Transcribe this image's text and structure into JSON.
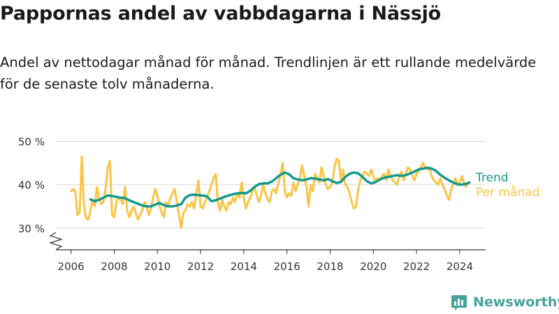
{
  "title": "Pappornas andel av vabbdagarna i Nässjö",
  "subtitle": "Andel av nettodagar månad för månad. Trendlinjen är ett rullande medelvärde för de senaste tolv månaderna.",
  "brand": {
    "name": "Newsworthy"
  },
  "colors": {
    "trend": "#14998c",
    "monthly": "#fcc444",
    "grid": "#d9d9d9",
    "axis": "#333333"
  },
  "chart_data": {
    "type": "line",
    "ylim": [
      25,
      52
    ],
    "y_ticks": [
      {
        "value": 30,
        "label": "30 %"
      },
      {
        "value": 40,
        "label": "40 %"
      },
      {
        "value": 50,
        "label": "50 %"
      }
    ],
    "xlim": [
      2005.3,
      2025.2
    ],
    "x_ticks": [
      {
        "value": 2006,
        "label": "2006"
      },
      {
        "value": 2008,
        "label": "2008"
      },
      {
        "value": 2010,
        "label": "2010"
      },
      {
        "value": 2012,
        "label": "2012"
      },
      {
        "value": 2014,
        "label": "2014"
      },
      {
        "value": 2016,
        "label": "2016"
      },
      {
        "value": 2018,
        "label": "2018"
      },
      {
        "value": 2020,
        "label": "2020"
      },
      {
        "value": 2022,
        "label": "2022"
      },
      {
        "value": 2024,
        "label": "2024"
      }
    ],
    "grid": true,
    "axis_break": true,
    "series": [
      {
        "name": "Per månad",
        "color": "#fcc444",
        "points": [
          [
            2006.0,
            38.5
          ],
          [
            2006.1,
            39.0
          ],
          [
            2006.2,
            38.4
          ],
          [
            2006.3,
            33.0
          ],
          [
            2006.4,
            33.5
          ],
          [
            2006.5,
            46.5
          ],
          [
            2006.6,
            35.0
          ],
          [
            2006.7,
            32.2
          ],
          [
            2006.8,
            32.0
          ],
          [
            2006.9,
            34.0
          ],
          [
            2007.0,
            36.5
          ],
          [
            2007.1,
            35.0
          ],
          [
            2007.2,
            39.5
          ],
          [
            2007.3,
            37.0
          ],
          [
            2007.4,
            35.5
          ],
          [
            2007.5,
            36.0
          ],
          [
            2007.6,
            39.0
          ],
          [
            2007.7,
            44.0
          ],
          [
            2007.8,
            45.5
          ],
          [
            2007.9,
            33.0
          ],
          [
            2008.0,
            32.5
          ],
          [
            2008.1,
            36.0
          ],
          [
            2008.2,
            37.0
          ],
          [
            2008.3,
            36.5
          ],
          [
            2008.4,
            35.5
          ],
          [
            2008.5,
            39.5
          ],
          [
            2008.6,
            34.0
          ],
          [
            2008.7,
            32.5
          ],
          [
            2008.8,
            34.0
          ],
          [
            2008.9,
            35.0
          ],
          [
            2009.0,
            33.5
          ],
          [
            2009.1,
            32.0
          ],
          [
            2009.2,
            33.0
          ],
          [
            2009.3,
            34.0
          ],
          [
            2009.4,
            36.0
          ],
          [
            2009.5,
            35.0
          ],
          [
            2009.6,
            33.0
          ],
          [
            2009.7,
            34.5
          ],
          [
            2009.8,
            37.0
          ],
          [
            2009.9,
            39.0
          ],
          [
            2010.0,
            37.5
          ],
          [
            2010.1,
            35.0
          ],
          [
            2010.2,
            33.5
          ],
          [
            2010.3,
            32.5
          ],
          [
            2010.4,
            36.0
          ],
          [
            2010.5,
            35.0
          ],
          [
            2010.6,
            37.0
          ],
          [
            2010.7,
            38.0
          ],
          [
            2010.8,
            39.0
          ],
          [
            2010.9,
            36.0
          ],
          [
            2011.0,
            33.0
          ],
          [
            2011.1,
            30.0
          ],
          [
            2011.2,
            33.5
          ],
          [
            2011.3,
            34.0
          ],
          [
            2011.4,
            35.5
          ],
          [
            2011.5,
            35.0
          ],
          [
            2011.6,
            36.0
          ],
          [
            2011.7,
            34.5
          ],
          [
            2011.8,
            38.0
          ],
          [
            2011.9,
            41.0
          ],
          [
            2012.0,
            35.0
          ],
          [
            2012.1,
            34.5
          ],
          [
            2012.2,
            36.0
          ],
          [
            2012.3,
            37.0
          ],
          [
            2012.4,
            38.5
          ],
          [
            2012.5,
            40.0
          ],
          [
            2012.6,
            41.5
          ],
          [
            2012.7,
            42.5
          ],
          [
            2012.8,
            36.0
          ],
          [
            2012.9,
            34.0
          ],
          [
            2013.0,
            36.5
          ],
          [
            2013.1,
            35.0
          ],
          [
            2013.2,
            34.0
          ],
          [
            2013.3,
            36.0
          ],
          [
            2013.4,
            35.5
          ],
          [
            2013.5,
            37.0
          ],
          [
            2013.6,
            36.0
          ],
          [
            2013.7,
            38.0
          ],
          [
            2013.8,
            37.0
          ],
          [
            2013.9,
            40.5
          ],
          [
            2014.0,
            37.0
          ],
          [
            2014.1,
            34.5
          ],
          [
            2014.2,
            36.0
          ],
          [
            2014.3,
            37.0
          ],
          [
            2014.4,
            38.5
          ],
          [
            2014.5,
            39.5
          ],
          [
            2014.6,
            37.5
          ],
          [
            2014.7,
            36.0
          ],
          [
            2014.8,
            37.5
          ],
          [
            2014.9,
            40.0
          ],
          [
            2015.0,
            38.0
          ],
          [
            2015.1,
            36.5
          ],
          [
            2015.2,
            36.0
          ],
          [
            2015.3,
            38.5
          ],
          [
            2015.4,
            39.0
          ],
          [
            2015.5,
            38.0
          ],
          [
            2015.6,
            40.5
          ],
          [
            2015.7,
            42.0
          ],
          [
            2015.8,
            45.0
          ],
          [
            2015.9,
            38.5
          ],
          [
            2016.0,
            37.0
          ],
          [
            2016.1,
            38.0
          ],
          [
            2016.2,
            37.5
          ],
          [
            2016.3,
            40.5
          ],
          [
            2016.4,
            38.5
          ],
          [
            2016.5,
            40.0
          ],
          [
            2016.6,
            41.5
          ],
          [
            2016.7,
            44.5
          ],
          [
            2016.8,
            42.0
          ],
          [
            2016.9,
            39.5
          ],
          [
            2017.0,
            35.0
          ],
          [
            2017.1,
            40.0
          ],
          [
            2017.2,
            38.5
          ],
          [
            2017.3,
            42.5
          ],
          [
            2017.4,
            41.5
          ],
          [
            2017.5,
            40.5
          ],
          [
            2017.6,
            44.0
          ],
          [
            2017.7,
            42.0
          ],
          [
            2017.8,
            40.0
          ],
          [
            2017.9,
            39.0
          ],
          [
            2018.0,
            39.5
          ],
          [
            2018.1,
            40.5
          ],
          [
            2018.2,
            44.0
          ],
          [
            2018.3,
            46.0
          ],
          [
            2018.4,
            45.5
          ],
          [
            2018.5,
            41.0
          ],
          [
            2018.6,
            43.5
          ],
          [
            2018.7,
            40.0
          ],
          [
            2018.8,
            39.5
          ],
          [
            2018.9,
            38.0
          ],
          [
            2019.0,
            36.0
          ],
          [
            2019.1,
            34.5
          ],
          [
            2019.2,
            35.0
          ],
          [
            2019.3,
            39.0
          ],
          [
            2019.4,
            41.0
          ],
          [
            2019.5,
            42.0
          ],
          [
            2019.6,
            43.0
          ],
          [
            2019.7,
            42.5
          ],
          [
            2019.8,
            42.0
          ],
          [
            2019.9,
            43.5
          ],
          [
            2020.0,
            42.0
          ],
          [
            2020.1,
            40.5
          ],
          [
            2020.2,
            41.5
          ],
          [
            2020.3,
            41.0
          ],
          [
            2020.4,
            42.0
          ],
          [
            2020.5,
            42.5
          ],
          [
            2020.6,
            41.0
          ],
          [
            2020.7,
            43.5
          ],
          [
            2020.8,
            42.0
          ],
          [
            2020.9,
            41.0
          ],
          [
            2021.0,
            40.5
          ],
          [
            2021.1,
            40.0
          ],
          [
            2021.2,
            42.0
          ],
          [
            2021.3,
            43.0
          ],
          [
            2021.4,
            41.0
          ],
          [
            2021.5,
            42.5
          ],
          [
            2021.6,
            44.0
          ],
          [
            2021.7,
            43.5
          ],
          [
            2021.8,
            42.0
          ],
          [
            2021.9,
            41.0
          ],
          [
            2022.0,
            42.5
          ],
          [
            2022.1,
            43.0
          ],
          [
            2022.2,
            44.0
          ],
          [
            2022.3,
            45.0
          ],
          [
            2022.4,
            44.0
          ],
          [
            2022.5,
            43.5
          ],
          [
            2022.6,
            44.0
          ],
          [
            2022.7,
            42.0
          ],
          [
            2022.8,
            41.0
          ],
          [
            2022.9,
            40.5
          ],
          [
            2023.0,
            40.0
          ],
          [
            2023.1,
            41.5
          ],
          [
            2023.2,
            40.0
          ],
          [
            2023.3,
            39.0
          ],
          [
            2023.4,
            37.5
          ],
          [
            2023.5,
            36.5
          ],
          [
            2023.6,
            39.0
          ],
          [
            2023.7,
            40.0
          ],
          [
            2023.8,
            41.5
          ],
          [
            2023.9,
            40.0
          ],
          [
            2024.0,
            40.5
          ],
          [
            2024.1,
            42.0
          ],
          [
            2024.2,
            40.5
          ],
          [
            2024.3,
            39.5
          ],
          [
            2024.4,
            40.5
          ]
        ]
      },
      {
        "name": "Trend",
        "color": "#14998c",
        "points": [
          [
            2006.9,
            36.6
          ],
          [
            2007.1,
            36.2
          ],
          [
            2007.3,
            36.5
          ],
          [
            2007.5,
            37.0
          ],
          [
            2007.7,
            37.5
          ],
          [
            2007.9,
            37.4
          ],
          [
            2008.1,
            37.2
          ],
          [
            2008.3,
            37.0
          ],
          [
            2008.5,
            36.9
          ],
          [
            2008.7,
            36.4
          ],
          [
            2008.9,
            36.0
          ],
          [
            2009.1,
            35.6
          ],
          [
            2009.3,
            35.2
          ],
          [
            2009.5,
            35.0
          ],
          [
            2009.7,
            35.0
          ],
          [
            2009.9,
            35.4
          ],
          [
            2010.1,
            35.8
          ],
          [
            2010.3,
            35.3
          ],
          [
            2010.5,
            35.0
          ],
          [
            2010.7,
            35.0
          ],
          [
            2010.9,
            35.2
          ],
          [
            2011.1,
            35.5
          ],
          [
            2011.3,
            37.0
          ],
          [
            2011.5,
            37.6
          ],
          [
            2011.7,
            37.7
          ],
          [
            2011.9,
            37.6
          ],
          [
            2012.1,
            37.5
          ],
          [
            2012.3,
            37.3
          ],
          [
            2012.5,
            36.2
          ],
          [
            2012.7,
            36.4
          ],
          [
            2012.9,
            36.8
          ],
          [
            2013.1,
            37.2
          ],
          [
            2013.3,
            37.5
          ],
          [
            2013.5,
            37.8
          ],
          [
            2013.7,
            38.0
          ],
          [
            2013.9,
            38.1
          ],
          [
            2014.1,
            38.0
          ],
          [
            2014.3,
            38.6
          ],
          [
            2014.5,
            39.5
          ],
          [
            2014.7,
            40.1
          ],
          [
            2014.9,
            40.3
          ],
          [
            2015.1,
            40.3
          ],
          [
            2015.3,
            40.7
          ],
          [
            2015.5,
            41.5
          ],
          [
            2015.7,
            42.3
          ],
          [
            2015.9,
            42.8
          ],
          [
            2016.1,
            42.4
          ],
          [
            2016.3,
            41.5
          ],
          [
            2016.5,
            41.2
          ],
          [
            2016.7,
            41.0
          ],
          [
            2016.9,
            41.2
          ],
          [
            2017.1,
            41.5
          ],
          [
            2017.3,
            41.4
          ],
          [
            2017.5,
            41.2
          ],
          [
            2017.7,
            41.0
          ],
          [
            2017.9,
            41.3
          ],
          [
            2018.1,
            40.8
          ],
          [
            2018.3,
            40.4
          ],
          [
            2018.5,
            40.6
          ],
          [
            2018.7,
            41.8
          ],
          [
            2018.9,
            42.5
          ],
          [
            2019.1,
            42.8
          ],
          [
            2019.3,
            42.6
          ],
          [
            2019.5,
            41.8
          ],
          [
            2019.7,
            40.8
          ],
          [
            2019.9,
            40.3
          ],
          [
            2020.1,
            40.6
          ],
          [
            2020.3,
            41.2
          ],
          [
            2020.5,
            41.6
          ],
          [
            2020.7,
            41.8
          ],
          [
            2020.9,
            42.0
          ],
          [
            2021.1,
            42.2
          ],
          [
            2021.3,
            42.0
          ],
          [
            2021.5,
            42.2
          ],
          [
            2021.7,
            42.6
          ],
          [
            2021.9,
            43.0
          ],
          [
            2022.1,
            43.5
          ],
          [
            2022.3,
            43.7
          ],
          [
            2022.5,
            43.9
          ],
          [
            2022.7,
            43.7
          ],
          [
            2022.9,
            43.2
          ],
          [
            2023.1,
            42.3
          ],
          [
            2023.3,
            41.6
          ],
          [
            2023.5,
            41.0
          ],
          [
            2023.7,
            40.5
          ],
          [
            2023.9,
            40.1
          ],
          [
            2024.1,
            40.0
          ],
          [
            2024.3,
            40.2
          ],
          [
            2024.45,
            40.5
          ]
        ]
      }
    ],
    "legend": {
      "placement": "right, at end of lines"
    }
  }
}
